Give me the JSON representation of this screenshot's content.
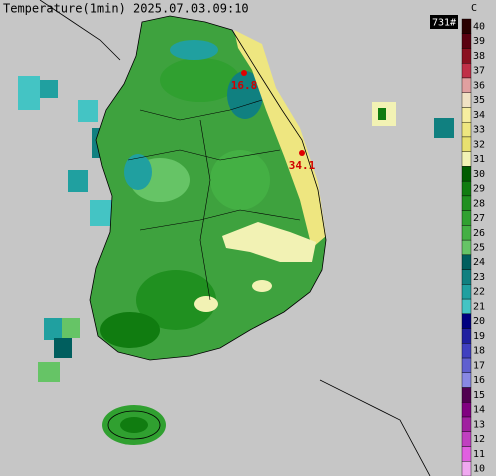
{
  "title": "Temperature(1min) 2025.07.03.09:10",
  "station_count": "731#",
  "colorbar": {
    "unit": "C",
    "levels": [
      {
        "label": "40",
        "color": "#2a0000"
      },
      {
        "label": "39",
        "color": "#5a0010"
      },
      {
        "label": "38",
        "color": "#8a1020"
      },
      {
        "label": "37",
        "color": "#c03048"
      },
      {
        "label": "36",
        "color": "#e0a0a0"
      },
      {
        "label": "35",
        "color": "#f0e2c4"
      },
      {
        "label": "34",
        "color": "#f6eea0"
      },
      {
        "label": "33",
        "color": "#eee680"
      },
      {
        "label": "32",
        "color": "#e8e070"
      },
      {
        "label": "31",
        "color": "#f2f2b4"
      },
      {
        "label": "30",
        "color": "#005c00"
      },
      {
        "label": "29",
        "color": "#107c10"
      },
      {
        "label": "28",
        "color": "#209020"
      },
      {
        "label": "27",
        "color": "#30a030"
      },
      {
        "label": "26",
        "color": "#44b044"
      },
      {
        "label": "25",
        "color": "#66c466"
      },
      {
        "label": "24",
        "color": "#005e5e"
      },
      {
        "label": "23",
        "color": "#108080"
      },
      {
        "label": "22",
        "color": "#20a0a0"
      },
      {
        "label": "21",
        "color": "#44c4c4"
      },
      {
        "label": "20",
        "color": "#000080"
      },
      {
        "label": "19",
        "color": "#2020a0"
      },
      {
        "label": "18",
        "color": "#4040c0"
      },
      {
        "label": "17",
        "color": "#6060d0"
      },
      {
        "label": "16",
        "color": "#8888e4"
      },
      {
        "label": "15",
        "color": "#500050"
      },
      {
        "label": "14",
        "color": "#800080"
      },
      {
        "label": "13",
        "color": "#a020a0"
      },
      {
        "label": "12",
        "color": "#c040c0"
      },
      {
        "label": "11",
        "color": "#e060e0"
      },
      {
        "label": "10",
        "color": "#f0a8f0"
      }
    ]
  },
  "stations": [
    {
      "label": "16.8"
    },
    {
      "label": "34.1"
    }
  ]
}
